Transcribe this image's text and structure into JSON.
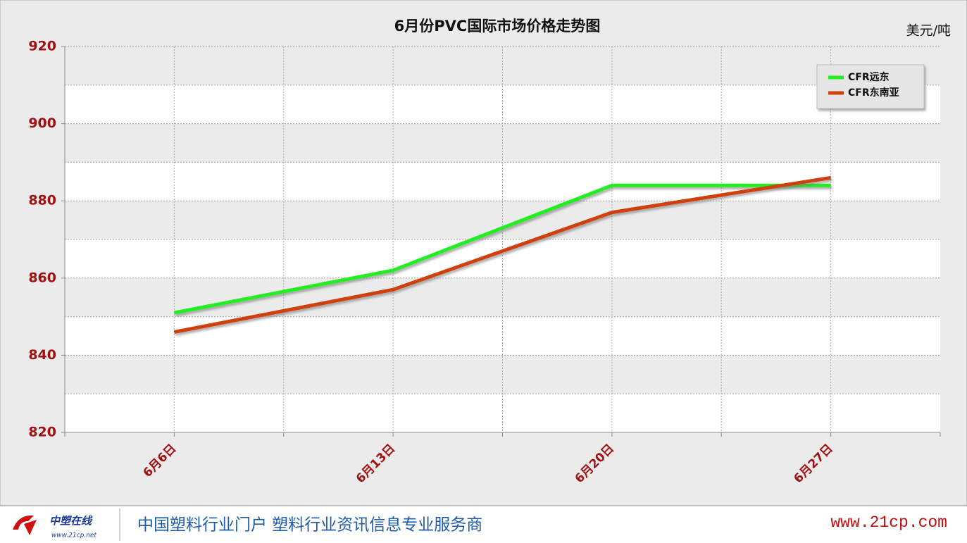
{
  "chart_data": {
    "type": "line",
    "title": "6月份PVC国际市场价格走势图",
    "unit": "美元/吨",
    "categories": [
      "6月6日",
      "6月13日",
      "6月20日",
      "6月27日"
    ],
    "series": [
      {
        "name": "CFR远东",
        "color": "#22ee22",
        "values": [
          851,
          862,
          884,
          884
        ]
      },
      {
        "name": "CFR东南亚",
        "color": "#d0400c",
        "values": [
          846,
          857,
          877,
          886
        ]
      }
    ],
    "ylim": [
      820,
      920
    ],
    "yticks": [
      820,
      840,
      860,
      880,
      900,
      920
    ],
    "grid": true,
    "legend": "top-right"
  },
  "footer": {
    "logo": "中塑在线",
    "logo_url": "www.21cp.net",
    "slogan": "中国塑料行业门户 塑料行业资讯信息专业服务商",
    "site": "www.21cp.com"
  }
}
